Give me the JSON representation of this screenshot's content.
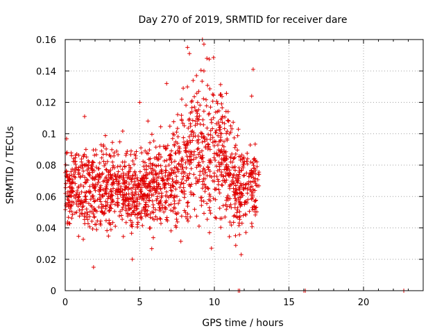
{
  "chart_data": {
    "type": "scatter",
    "title": "Day 270 of 2019, SRMTID for receiver dare",
    "xlabel": "GPS time / hours",
    "ylabel": "SRMTID / TECUs",
    "xlim": [
      0,
      24
    ],
    "ylim": [
      0,
      0.16
    ],
    "xticks": [
      "0",
      "5",
      "10",
      "15",
      "20"
    ],
    "yticks": [
      "0",
      "0.02",
      "0.04",
      "0.06",
      "0.08",
      "0.1",
      "0.12",
      "0.14",
      "0.16"
    ],
    "grid": true,
    "marker": "+",
    "series_color": "#e00000",
    "main_cloud": {
      "x_range": [
        0,
        13
      ],
      "typical_y": 0.065,
      "y_spread": 0.018,
      "min_y": 0.015,
      "max_y": 0.16,
      "n_points": 1600
    },
    "highlights": [
      {
        "x": 8.2,
        "y": 0.155
      },
      {
        "x": 8.8,
        "y": 0.137
      },
      {
        "x": 9.2,
        "y": 0.16
      },
      {
        "x": 9.3,
        "y": 0.157
      },
      {
        "x": 9.5,
        "y": 0.148
      },
      {
        "x": 9.3,
        "y": 0.14
      },
      {
        "x": 12.6,
        "y": 0.141
      },
      {
        "x": 12.5,
        "y": 0.124
      },
      {
        "x": 6.8,
        "y": 0.132
      },
      {
        "x": 5.0,
        "y": 0.12
      },
      {
        "x": 1.3,
        "y": 0.111
      },
      {
        "x": 11.8,
        "y": 0.023
      },
      {
        "x": 1.9,
        "y": 0.015
      },
      {
        "x": 4.5,
        "y": 0.02
      }
    ],
    "zero_points": [
      {
        "x": 11.6,
        "y": 0
      },
      {
        "x": 11.7,
        "y": 0
      },
      {
        "x": 16.0,
        "y": 0
      },
      {
        "x": 16.1,
        "y": 0
      },
      {
        "x": 22.7,
        "y": 0
      }
    ]
  }
}
